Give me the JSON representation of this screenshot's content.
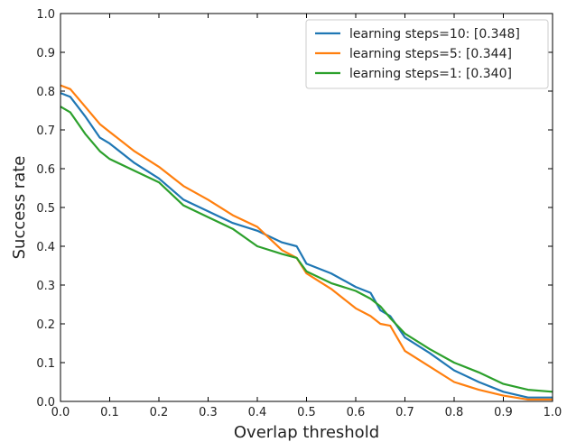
{
  "chart_data": {
    "type": "line",
    "title": "",
    "xlabel": "Overlap threshold",
    "ylabel": "Success rate",
    "xlim": [
      0.0,
      1.0
    ],
    "ylim": [
      0.0,
      1.0
    ],
    "xticks": [
      "0.0",
      "0.1",
      "0.2",
      "0.3",
      "0.4",
      "0.5",
      "0.6",
      "0.7",
      "0.8",
      "0.9",
      "1.0"
    ],
    "yticks": [
      "0.0",
      "0.1",
      "0.2",
      "0.3",
      "0.4",
      "0.5",
      "0.6",
      "0.7",
      "0.8",
      "0.9",
      "1.0"
    ],
    "grid": false,
    "legend": "top-right",
    "series": [
      {
        "name": "learning steps=10: [0.348]",
        "color": "#1f77b4",
        "x": [
          0.0,
          0.02,
          0.05,
          0.08,
          0.1,
          0.15,
          0.2,
          0.25,
          0.3,
          0.35,
          0.4,
          0.45,
          0.48,
          0.5,
          0.55,
          0.6,
          0.63,
          0.65,
          0.67,
          0.7,
          0.75,
          0.8,
          0.85,
          0.9,
          0.95,
          1.0
        ],
        "values": [
          0.795,
          0.785,
          0.735,
          0.68,
          0.665,
          0.615,
          0.575,
          0.52,
          0.49,
          0.46,
          0.44,
          0.41,
          0.4,
          0.355,
          0.33,
          0.295,
          0.28,
          0.235,
          0.22,
          0.165,
          0.125,
          0.08,
          0.05,
          0.025,
          0.01,
          0.01
        ]
      },
      {
        "name": "learning steps=5: [0.344]",
        "color": "#ff7f0e",
        "x": [
          0.0,
          0.02,
          0.05,
          0.08,
          0.1,
          0.15,
          0.2,
          0.25,
          0.3,
          0.35,
          0.4,
          0.45,
          0.48,
          0.5,
          0.55,
          0.6,
          0.63,
          0.65,
          0.67,
          0.7,
          0.75,
          0.8,
          0.85,
          0.9,
          0.95,
          1.0
        ],
        "values": [
          0.815,
          0.805,
          0.76,
          0.715,
          0.695,
          0.645,
          0.605,
          0.555,
          0.52,
          0.48,
          0.45,
          0.39,
          0.37,
          0.33,
          0.29,
          0.24,
          0.22,
          0.2,
          0.195,
          0.13,
          0.09,
          0.05,
          0.03,
          0.015,
          0.005,
          0.005
        ]
      },
      {
        "name": "learning steps=1: [0.340]",
        "color": "#2ca02c",
        "x": [
          0.0,
          0.02,
          0.05,
          0.08,
          0.1,
          0.15,
          0.2,
          0.25,
          0.3,
          0.35,
          0.4,
          0.45,
          0.48,
          0.5,
          0.55,
          0.6,
          0.63,
          0.65,
          0.67,
          0.7,
          0.75,
          0.8,
          0.85,
          0.9,
          0.95,
          1.0
        ],
        "values": [
          0.76,
          0.745,
          0.69,
          0.645,
          0.625,
          0.595,
          0.565,
          0.505,
          0.475,
          0.445,
          0.4,
          0.38,
          0.37,
          0.335,
          0.305,
          0.285,
          0.265,
          0.245,
          0.215,
          0.175,
          0.135,
          0.1,
          0.075,
          0.045,
          0.03,
          0.025
        ]
      }
    ]
  }
}
